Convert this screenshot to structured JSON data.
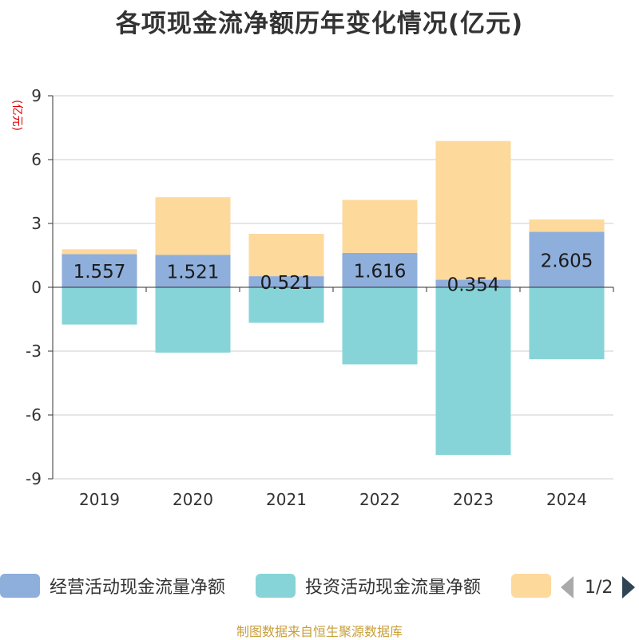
{
  "title": "各项现金流净额历年变化情况(亿元)",
  "unit_label": "(亿元)",
  "source": "制图数据来自恒生聚源数据库",
  "legend": {
    "items": [
      {
        "label": "经营活动现金流量净额",
        "color": "#8eaedb"
      },
      {
        "label": "投资活动现金流量净额",
        "color": "#86d4d8"
      },
      {
        "label": "",
        "color": "#fdd99c"
      }
    ],
    "page": "1/2"
  },
  "chart_data": {
    "type": "bar",
    "stacked": true,
    "title": "各项现金流净额历年变化情况(亿元)",
    "ylabel": "(亿元)",
    "categories": [
      "2019",
      "2020",
      "2021",
      "2022",
      "2023",
      "2024"
    ],
    "ylim": [
      -9,
      9
    ],
    "yticks": [
      -9,
      -6,
      -3,
      0,
      3,
      6,
      9
    ],
    "series": [
      {
        "name": "经营活动现金流量净额",
        "color": "#8eaedb",
        "values": [
          1.557,
          1.521,
          0.521,
          1.616,
          0.354,
          2.605
        ],
        "labels": [
          "1.557",
          "1.521",
          "0.521",
          "1.616",
          "0.354",
          "2.605"
        ]
      },
      {
        "name": "投资活动现金流量净额",
        "color": "#86d4d8",
        "values": [
          -1.75,
          -3.07,
          -1.67,
          -3.62,
          -7.88,
          -3.38
        ]
      },
      {
        "name": "",
        "color": "#fdd99c",
        "values": [
          0.23,
          2.71,
          1.99,
          2.49,
          6.52,
          0.58
        ]
      }
    ]
  }
}
